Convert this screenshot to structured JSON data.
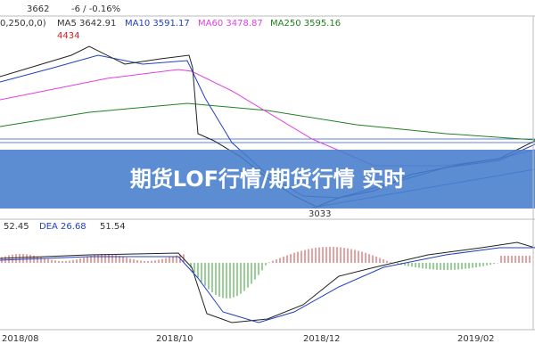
{
  "header": {
    "params": "0,250,0,0)",
    "price": "3662",
    "change": "-6 / -0.16%",
    "ma5": "MA5 3642.91",
    "ma10": "MA10 3591.17",
    "ma60": "MA60 3478.87",
    "ma250": "MA250 3595.16"
  },
  "annotations": {
    "high": "4434",
    "low": "3033"
  },
  "banner": "期货LOF行情/期货行情 实时",
  "macd_header": {
    "dif": "52.45",
    "dea": "DEA 26.68",
    "macd": "51.54"
  },
  "x_labels": [
    "2018/08",
    "2018/10",
    "2018/12",
    "2019/02"
  ]
}
